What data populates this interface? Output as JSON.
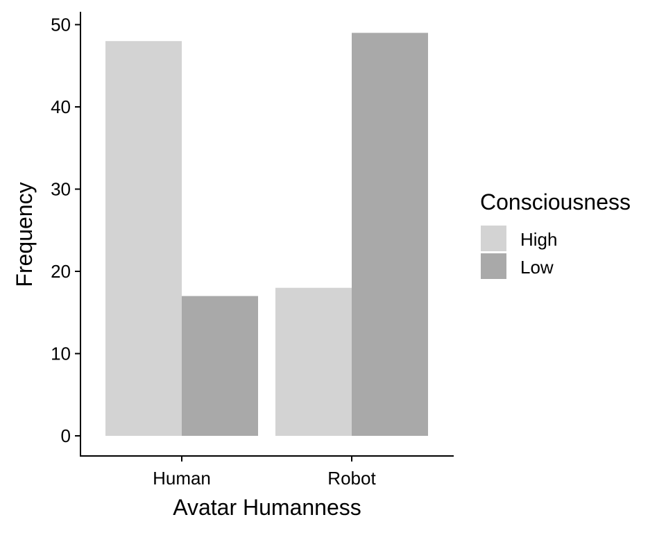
{
  "chart_data": {
    "type": "bar",
    "title": "",
    "xlabel": "Avatar Humanness",
    "ylabel": "Frequency",
    "categories": [
      "Human",
      "Robot"
    ],
    "series": [
      {
        "name": "High",
        "values": [
          48,
          18
        ],
        "color": "#d3d3d3"
      },
      {
        "name": "Low",
        "values": [
          17,
          49
        ],
        "color": "#a9a9a9"
      }
    ],
    "ylim": [
      0,
      50
    ],
    "yticks": [
      0,
      10,
      20,
      30,
      40,
      50
    ],
    "grid": false,
    "legend": {
      "title": "Consciousness",
      "placement": "right"
    }
  }
}
